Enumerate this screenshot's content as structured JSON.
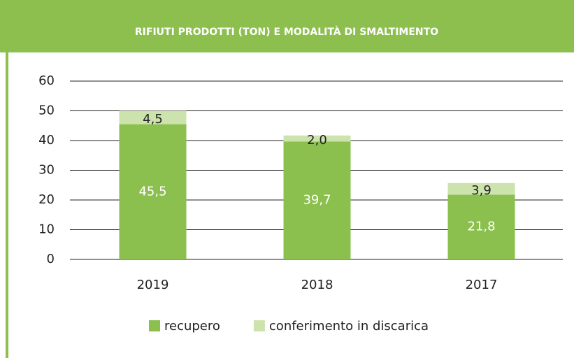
{
  "chart_data": {
    "type": "stacked_bar",
    "title": "RIFIUTI PRODOTTI (TON) E MODALITÀ DI SMALTIMENTO",
    "categories": [
      "2019",
      "2018",
      "2017"
    ],
    "series": [
      {
        "name": "recupero",
        "color": "#8cc04e",
        "values": [
          45.5,
          39.7,
          21.8
        ],
        "value_labels": [
          "45,5",
          "39,7",
          "21,8"
        ]
      },
      {
        "name": "conferimento in discarica",
        "color": "#cce3ad",
        "values": [
          4.5,
          2.0,
          3.9
        ],
        "value_labels": [
          "4,5",
          "2,0",
          "3,9"
        ]
      }
    ],
    "ylim": [
      0,
      60
    ],
    "yticks": [
      0,
      10,
      20,
      30,
      40,
      50,
      60
    ],
    "grid": true,
    "legend": "bottom"
  }
}
